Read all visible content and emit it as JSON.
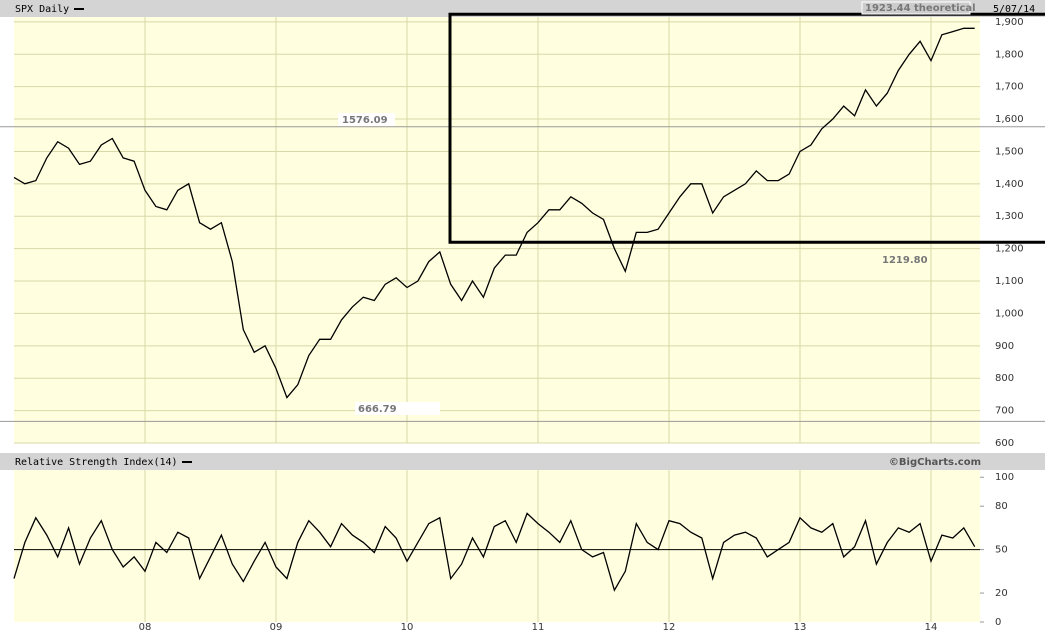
{
  "chart_data": [
    {
      "type": "line",
      "title": "SPX Daily",
      "date": "5/07/14",
      "color": "#000000",
      "values": [
        1420,
        1400,
        1410,
        1480,
        1530,
        1510,
        1460,
        1470,
        1520,
        1540,
        1480,
        1470,
        1380,
        1330,
        1320,
        1380,
        1400,
        1280,
        1260,
        1280,
        1160,
        950,
        880,
        900,
        830,
        740,
        780,
        870,
        920,
        920,
        980,
        1020,
        1050,
        1040,
        1090,
        1110,
        1080,
        1100,
        1160,
        1190,
        1090,
        1040,
        1100,
        1050,
        1140,
        1180,
        1180,
        1250,
        1280,
        1320,
        1320,
        1360,
        1340,
        1310,
        1290,
        1200,
        1130,
        1250,
        1250,
        1260,
        1310,
        1360,
        1400,
        1400,
        1310,
        1360,
        1380,
        1400,
        1440,
        1410,
        1410,
        1430,
        1500,
        1520,
        1570,
        1600,
        1640,
        1610,
        1690,
        1640,
        1680,
        1750,
        1800,
        1840,
        1780,
        1860,
        1870,
        1880,
        1880
      ],
      "ylim": [
        600,
        1915
      ],
      "yticks": [
        600,
        700,
        800,
        900,
        {
          "value": 1000,
          "label": "1,000"
        },
        {
          "value": 1100,
          "label": "1,100"
        },
        {
          "value": 1200,
          "label": "1,200"
        },
        {
          "value": 1300,
          "label": "1,300"
        },
        {
          "value": 1400,
          "label": "1,400"
        },
        {
          "value": 1500,
          "label": "1,500"
        },
        {
          "value": 1600,
          "label": "1,600"
        },
        {
          "value": 1700,
          "label": "1,700"
        },
        {
          "value": 1800,
          "label": "1,800"
        },
        {
          "value": 1900,
          "label": "1,900"
        }
      ],
      "grid": true,
      "annotations": [
        {
          "value": 1923.44,
          "label": "1923.44 theoretical"
        },
        {
          "value": 1576.09,
          "label": "1576.09"
        },
        {
          "value": 1219.8,
          "label": "1219.80"
        },
        {
          "value": 666.79,
          "label": "666.79"
        }
      ],
      "credit": "©BigCharts.com"
    },
    {
      "type": "line",
      "title": "Relative Strength Index(14)",
      "color": "#000000",
      "categories": [
        null,
        null,
        null,
        null,
        null,
        null,
        null,
        null,
        null,
        null,
        null,
        null,
        "08",
        null,
        null,
        null,
        null,
        null,
        null,
        null,
        null,
        null,
        null,
        null,
        "09",
        null,
        null,
        null,
        null,
        null,
        null,
        null,
        null,
        null,
        null,
        null,
        "10",
        null,
        null,
        null,
        null,
        null,
        null,
        null,
        null,
        null,
        null,
        null,
        "11",
        null,
        null,
        null,
        null,
        null,
        null,
        null,
        null,
        null,
        null,
        null,
        "12",
        null,
        null,
        null,
        null,
        null,
        null,
        null,
        null,
        null,
        null,
        null,
        "13",
        null,
        null,
        null,
        null,
        null,
        null,
        null,
        null,
        null,
        null,
        null,
        "14",
        null,
        null,
        null,
        null
      ],
      "values": [
        30,
        55,
        72,
        60,
        45,
        65,
        40,
        58,
        70,
        50,
        38,
        45,
        35,
        55,
        48,
        62,
        58,
        30,
        45,
        60,
        40,
        28,
        42,
        55,
        38,
        30,
        55,
        70,
        62,
        52,
        68,
        60,
        55,
        48,
        66,
        58,
        42,
        55,
        68,
        72,
        30,
        40,
        58,
        45,
        66,
        70,
        55,
        75,
        68,
        62,
        55,
        70,
        50,
        45,
        48,
        22,
        35,
        68,
        55,
        50,
        70,
        68,
        62,
        58,
        30,
        55,
        60,
        62,
        58,
        45,
        50,
        55,
        72,
        65,
        62,
        68,
        45,
        52,
        70,
        40,
        55,
        65,
        62,
        68,
        42,
        60,
        58,
        65,
        52
      ],
      "ylim": [
        0,
        105
      ],
      "yticks": [
        0,
        20,
        50,
        80,
        100
      ],
      "hline": 50
    }
  ]
}
